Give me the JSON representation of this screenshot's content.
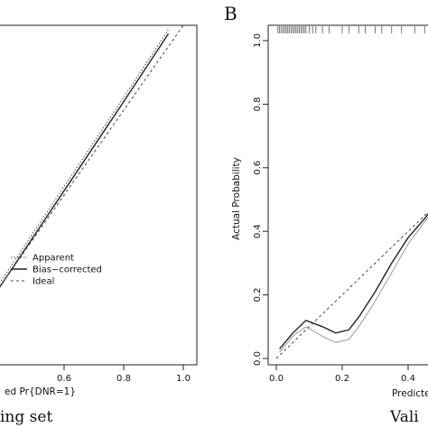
{
  "chart_data": [
    {
      "type": "line",
      "panel_letter": "",
      "caption": "ing set",
      "xlabel": "ed Pr{DNR=1}",
      "ylabel": "",
      "xlim": [
        0.2,
        1.0
      ],
      "ylim": [
        0.2,
        1.0
      ],
      "x_ticks": [
        0.6,
        0.8,
        1.0
      ],
      "x_tick_labels": [
        "0.6",
        "0.8",
        "1.0"
      ],
      "y_ticks": [],
      "y_tick_labels": [],
      "legend": {
        "placement": "center",
        "entries": [
          {
            "label": "Apparent",
            "style": "dotted"
          },
          {
            "label": "Bias−corrected",
            "style": "solid"
          },
          {
            "label": "Ideal",
            "style": "dashed"
          }
        ]
      },
      "series": [
        {
          "name": "Apparent",
          "style": "dotted",
          "x": [
            0.2,
            0.4,
            0.6,
            0.8,
            0.95
          ],
          "y": [
            0.2,
            0.41,
            0.62,
            0.83,
            0.99
          ]
        },
        {
          "name": "Bias−corrected",
          "style": "solid",
          "x": [
            0.2,
            0.4,
            0.6,
            0.8,
            0.95
          ],
          "y": [
            0.19,
            0.4,
            0.61,
            0.82,
            0.98
          ]
        },
        {
          "name": "Ideal",
          "style": "dashed",
          "x": [
            0.2,
            1.0
          ],
          "y": [
            0.2,
            1.0
          ]
        }
      ]
    },
    {
      "type": "line",
      "panel_letter": "B",
      "caption": "Vali",
      "xlabel": "Predicte",
      "ylabel": "Actual Probability",
      "xlim": [
        0.0,
        1.0
      ],
      "ylim": [
        0.0,
        1.0
      ],
      "x_ticks": [
        0.0,
        0.2,
        0.4
      ],
      "x_tick_labels": [
        "0.0",
        "0.2",
        "0.4"
      ],
      "y_ticks": [
        0.0,
        0.2,
        0.4,
        0.6,
        0.8,
        1.0
      ],
      "y_tick_labels": [
        "0.0",
        "0.2",
        "0.4",
        "0.6",
        "0.8",
        "1.0"
      ],
      "rug_x": [
        0.005,
        0.01,
        0.015,
        0.02,
        0.025,
        0.03,
        0.035,
        0.04,
        0.045,
        0.05,
        0.055,
        0.06,
        0.065,
        0.07,
        0.075,
        0.08,
        0.085,
        0.09,
        0.1,
        0.11,
        0.12,
        0.14,
        0.16,
        0.2,
        0.22,
        0.25,
        0.27,
        0.3,
        0.32,
        0.35,
        0.38,
        0.42,
        0.45
      ],
      "series": [
        {
          "name": "",
          "style": "solid",
          "x": [
            0.01,
            0.05,
            0.09,
            0.14,
            0.18,
            0.22,
            0.25,
            0.3,
            0.35,
            0.4,
            0.45,
            0.48
          ],
          "y": [
            0.03,
            0.08,
            0.12,
            0.1,
            0.08,
            0.09,
            0.13,
            0.21,
            0.3,
            0.38,
            0.44,
            0.48
          ]
        },
        {
          "name": "",
          "style": "light",
          "x": [
            0.01,
            0.05,
            0.09,
            0.14,
            0.18,
            0.22,
            0.25,
            0.3,
            0.35,
            0.4,
            0.45,
            0.48
          ],
          "y": [
            0.02,
            0.07,
            0.1,
            0.07,
            0.05,
            0.06,
            0.1,
            0.18,
            0.27,
            0.36,
            0.43,
            0.47
          ]
        },
        {
          "name": "",
          "style": "dashed",
          "x": [
            0.0,
            1.0
          ],
          "y": [
            0.0,
            1.0
          ]
        }
      ]
    }
  ]
}
